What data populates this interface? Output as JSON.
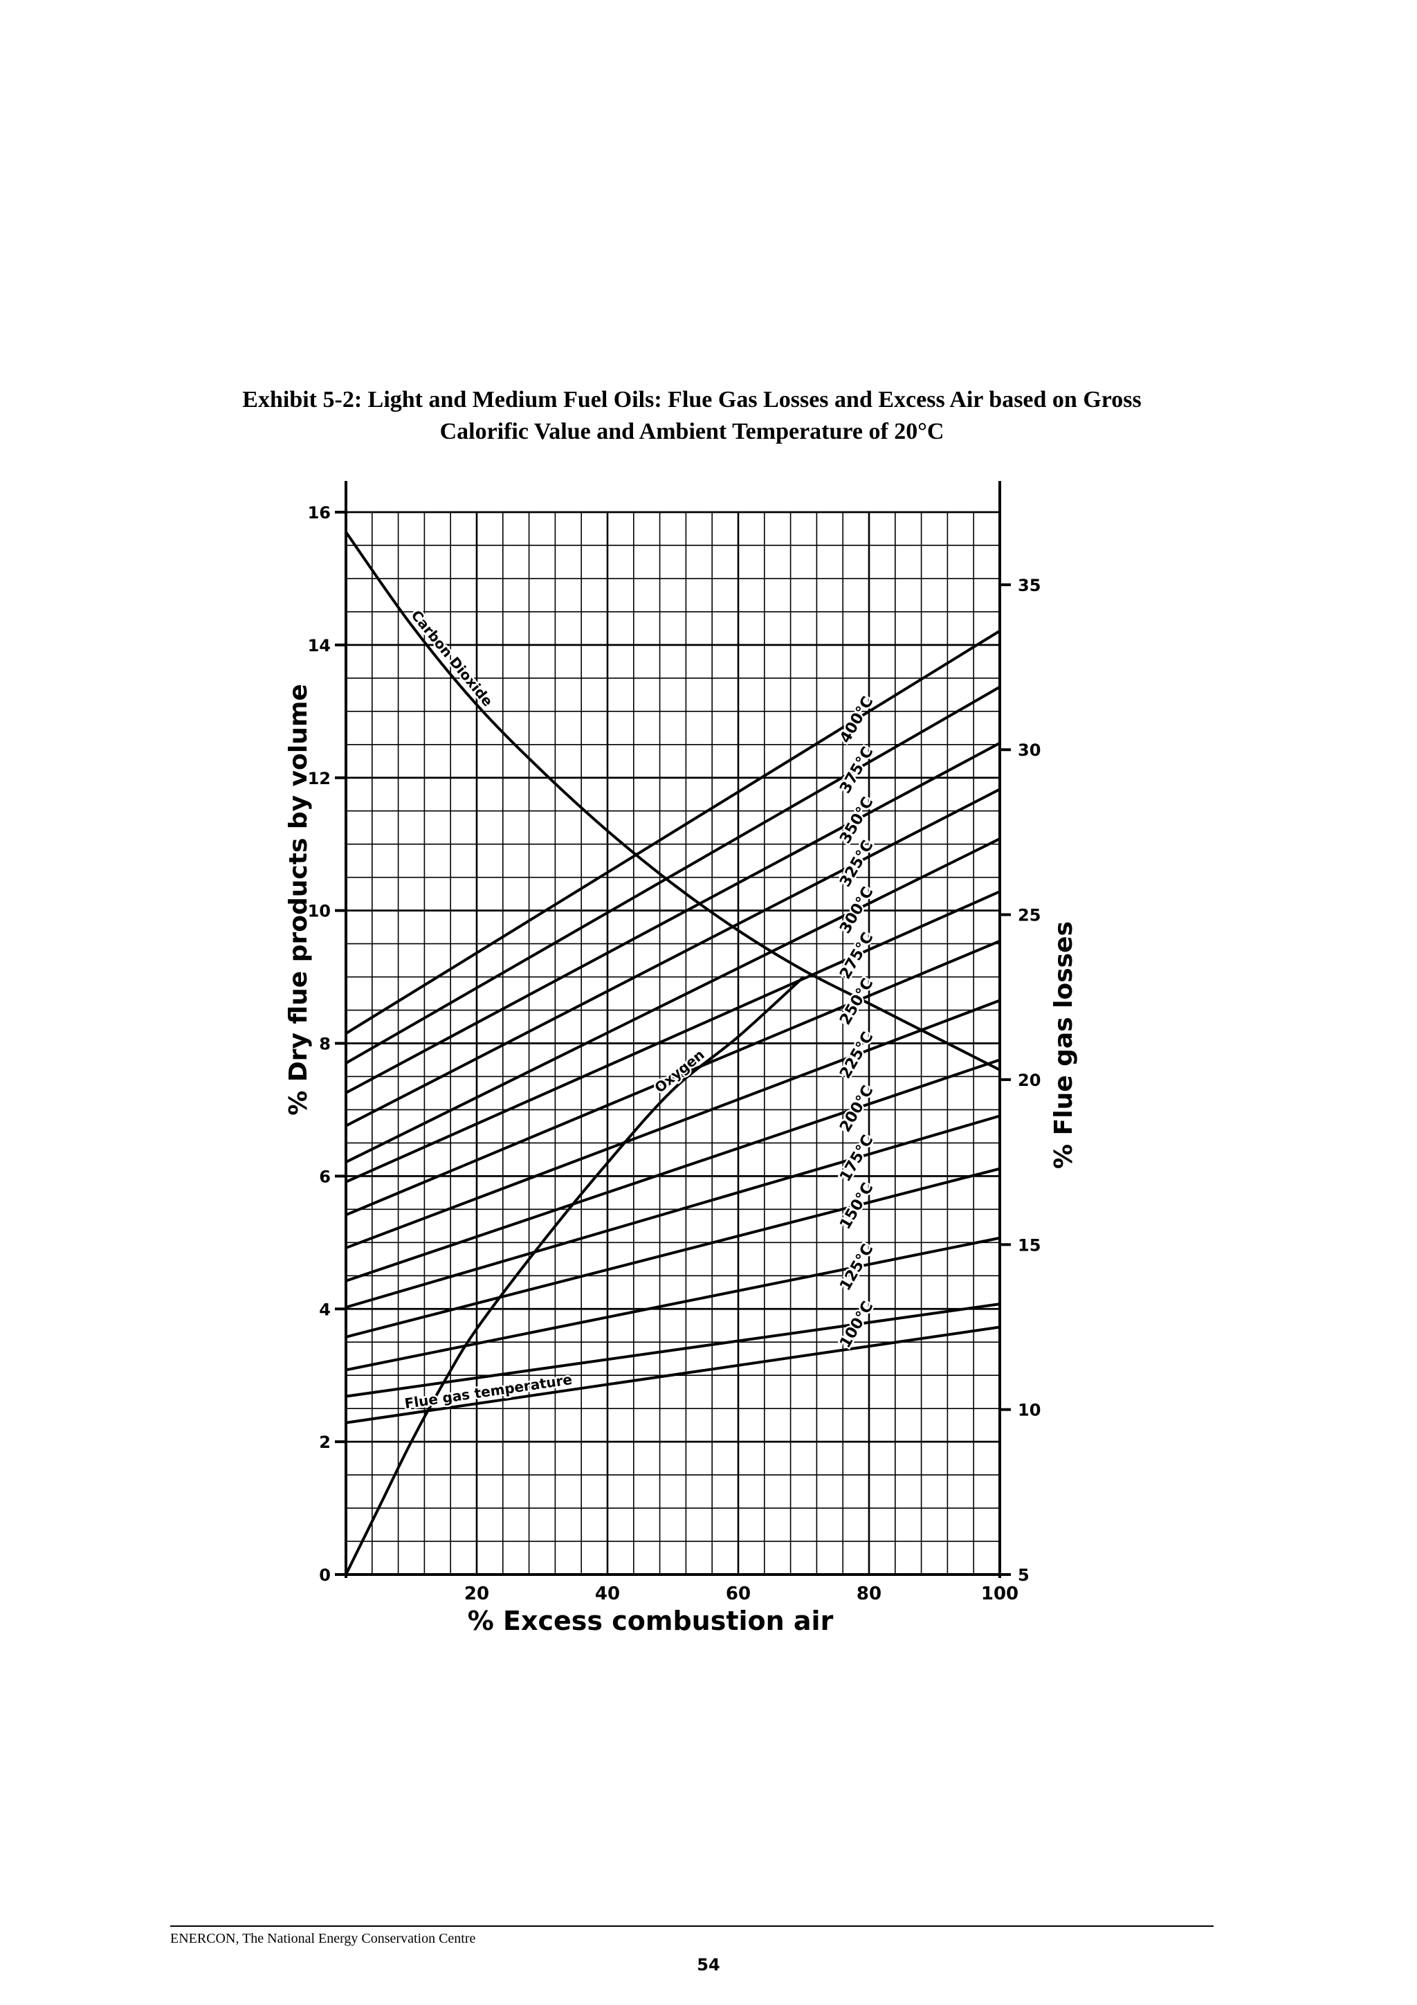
{
  "document": {
    "title_line1": "Exhibit 5-2:  Light and Medium Fuel Oils: Flue Gas Losses and Excess Air based on Gross",
    "title_line2": "Calorific Value and Ambient Temperature of 20°C",
    "footer_text": "ENERCON, The National Energy Conservation Centre",
    "page_number": "54"
  },
  "chart_data": {
    "type": "line",
    "xlabel": "% Excess combustion air",
    "ylabel_left": "% Dry flue products by volume",
    "ylabel_right": "% Flue gas losses",
    "xlim": [
      0,
      100
    ],
    "ylim_left": [
      0,
      16
    ],
    "ylim_right": [
      5,
      37.2
    ],
    "x_ticks": [
      "20",
      "40",
      "60",
      "80",
      "100"
    ],
    "x_tick_values": [
      20,
      40,
      60,
      80,
      100
    ],
    "y_left_ticks": [
      "0",
      "2",
      "4",
      "6",
      "8",
      "10",
      "12",
      "14",
      "16"
    ],
    "y_left_tick_values": [
      0,
      2,
      4,
      6,
      8,
      10,
      12,
      14,
      16
    ],
    "y_right_ticks": [
      "5",
      "10",
      "15",
      "20",
      "25",
      "30",
      "35"
    ],
    "y_right_tick_values": [
      5,
      10,
      15,
      20,
      25,
      30,
      35
    ],
    "grid": true,
    "series": [
      {
        "name": "Carbon Dioxide",
        "axis": "left",
        "x": [
          0,
          10,
          20,
          30,
          40,
          50,
          60,
          70,
          80,
          90,
          100
        ],
        "y": [
          15.7,
          14.3,
          13.1,
          12.1,
          11.2,
          10.4,
          9.7,
          9.1,
          8.6,
          8.1,
          7.6
        ]
      },
      {
        "name": "Oxygen",
        "axis": "left",
        "x": [
          0,
          5,
          10,
          15,
          20,
          30,
          40,
          50,
          60,
          70
        ],
        "y": [
          0,
          1.0,
          2.0,
          2.9,
          3.7,
          5.0,
          6.2,
          7.3,
          8.1,
          9.0
        ]
      },
      {
        "name": "Flue gas temperature",
        "axis": "right",
        "x": [
          0,
          100
        ],
        "y": [
          9.6,
          12.5
        ]
      },
      {
        "name": "100°C",
        "axis": "right",
        "x": [
          0,
          100
        ],
        "y": [
          10.4,
          13.2
        ]
      },
      {
        "name": "125°C",
        "axis": "right",
        "x": [
          0,
          100
        ],
        "y": [
          11.2,
          15.2
        ]
      },
      {
        "name": "150°C",
        "axis": "right",
        "x": [
          0,
          100
        ],
        "y": [
          12.2,
          17.3
        ]
      },
      {
        "name": "175°C",
        "axis": "right",
        "x": [
          0,
          100
        ],
        "y": [
          13.1,
          18.9
        ]
      },
      {
        "name": "200°C",
        "axis": "right",
        "x": [
          0,
          100
        ],
        "y": [
          13.9,
          20.6
        ]
      },
      {
        "name": "225°C",
        "axis": "right",
        "x": [
          0,
          100
        ],
        "y": [
          14.9,
          22.4
        ]
      },
      {
        "name": "250°C",
        "axis": "right",
        "x": [
          0,
          100
        ],
        "y": [
          15.9,
          24.2
        ]
      },
      {
        "name": "275°C",
        "axis": "right",
        "x": [
          0,
          100
        ],
        "y": [
          16.9,
          25.7
        ]
      },
      {
        "name": "300°C",
        "axis": "right",
        "x": [
          0,
          100
        ],
        "y": [
          17.5,
          27.3
        ]
      },
      {
        "name": "325°C",
        "axis": "right",
        "x": [
          0,
          100
        ],
        "y": [
          18.6,
          28.8
        ]
      },
      {
        "name": "350°C",
        "axis": "right",
        "x": [
          0,
          100
        ],
        "y": [
          19.6,
          30.2
        ]
      },
      {
        "name": "375°C",
        "axis": "right",
        "x": [
          0,
          100
        ],
        "y": [
          20.5,
          31.9
        ]
      },
      {
        "name": "400°C",
        "axis": "right",
        "x": [
          0,
          100
        ],
        "y": [
          21.4,
          33.6
        ]
      }
    ]
  }
}
